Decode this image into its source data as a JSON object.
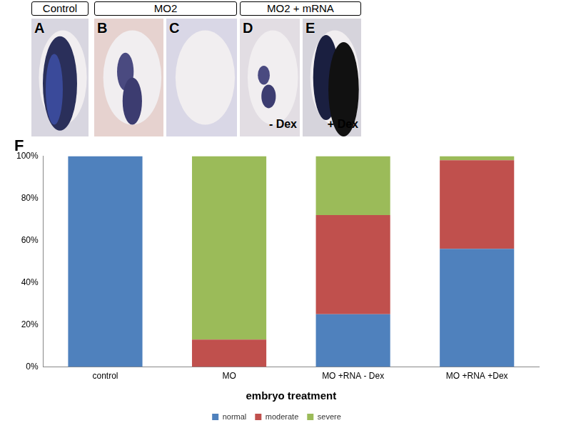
{
  "panels": {
    "headers": [
      "Control",
      "MO2",
      "MO2 + mRNA"
    ],
    "images": [
      {
        "label": "A"
      },
      {
        "label": "B"
      },
      {
        "label": "C"
      },
      {
        "label": "D",
        "note": "- Dex"
      },
      {
        "label": "E",
        "note": "+ Dex"
      }
    ]
  },
  "chart_data": {
    "type": "bar",
    "title": "F",
    "stacked": true,
    "xlabel": "embryo treatment",
    "categories": [
      "control",
      "MO",
      "MO +RNA - Dex",
      "MO +RNA +Dex"
    ],
    "series": [
      {
        "name": "normal",
        "color": "#4f81bd",
        "values": [
          100,
          0,
          25,
          56
        ]
      },
      {
        "name": "moderate",
        "color": "#c0504d",
        "values": [
          0,
          13,
          47,
          42
        ]
      },
      {
        "name": "severe",
        "color": "#9bbb59",
        "values": [
          0,
          87,
          28,
          2
        ]
      }
    ],
    "ylim": [
      0,
      100
    ],
    "yticks": [
      {
        "value": 0,
        "label": "0%"
      },
      {
        "value": 20,
        "label": "20%"
      },
      {
        "value": 40,
        "label": "40%"
      },
      {
        "value": 60,
        "label": "60%"
      },
      {
        "value": 80,
        "label": "80%"
      },
      {
        "value": 100,
        "label": "100%"
      }
    ],
    "grid": false,
    "legend": "bottom"
  }
}
